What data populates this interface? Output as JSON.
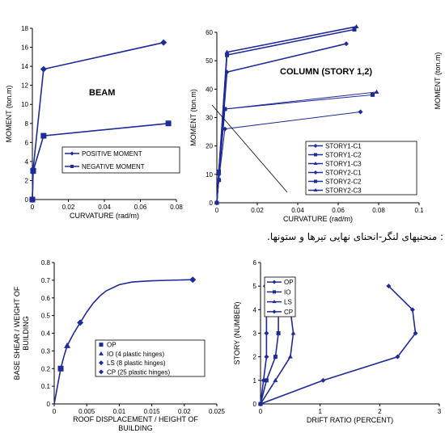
{
  "caption": ": منحنیهای لنگر-انحنای نهایی تیرها و ستونها.",
  "colors": {
    "series": "#1f2a9a",
    "axis": "#000000"
  },
  "chart_data": [
    {
      "id": "beam",
      "type": "line",
      "title": "BEAM",
      "xlabel": "CURVATURE (rad/m)",
      "ylabel": "MOMENT (ton.m)",
      "xlim": [
        0,
        0.09
      ],
      "ylim": [
        0,
        18
      ],
      "xticks": [
        "0",
        "0.02",
        "0.04",
        "0.06",
        "0.08"
      ],
      "yticks": [
        "0",
        "2",
        "4",
        "6",
        "8",
        "10",
        "12",
        "14",
        "16",
        "18"
      ],
      "legend_position": "bottom-right",
      "series": [
        {
          "name": "POSITIVE MOMENT",
          "marker": "diamond",
          "x": [
            0,
            0.0005,
            0.007,
            0.082
          ],
          "y": [
            0,
            3.2,
            13.7,
            16.5
          ]
        },
        {
          "name": "NEGATIVE MOMENT",
          "marker": "square",
          "x": [
            0,
            0.0005,
            0.007,
            0.085
          ],
          "y": [
            0,
            3.0,
            6.7,
            8.0
          ]
        }
      ]
    },
    {
      "id": "column",
      "type": "line",
      "title": "COLUMN (STORY 1,2)",
      "xlabel": "CURVATURE (rad/m)",
      "ylabel": "MOMENT (ton.m)",
      "right_ylabel": "MOMENT (ton.m)",
      "xlim": [
        0,
        0.1
      ],
      "ylim": [
        0,
        60
      ],
      "xticks": [
        "0",
        "0.02",
        "0.04",
        "0.06",
        "0.08",
        "0.1"
      ],
      "yticks": [
        "0",
        "10",
        "20",
        "30",
        "40",
        "50",
        "60"
      ],
      "legend_position": "bottom-right",
      "series": [
        {
          "name": "STORY1-C1",
          "marker": "diamond",
          "x": [
            0,
            0.001,
            0.005,
            0.064
          ],
          "y": [
            0,
            10,
            46,
            56
          ]
        },
        {
          "name": "STORY1-C2",
          "marker": "square",
          "x": [
            0,
            0.001,
            0.005,
            0.068
          ],
          "y": [
            0,
            11,
            52,
            61
          ]
        },
        {
          "name": "STORY1-C3",
          "marker": "triangle",
          "x": [
            0,
            0.001,
            0.005,
            0.069
          ],
          "y": [
            0,
            11,
            53,
            62
          ]
        },
        {
          "name": "STORY2-C1",
          "marker": "diamond",
          "x": [
            0,
            0.001,
            0.004,
            0.071
          ],
          "y": [
            0,
            8,
            26,
            32
          ]
        },
        {
          "name": "STORY2-C2",
          "marker": "square",
          "x": [
            0,
            0.001,
            0.004,
            0.077
          ],
          "y": [
            0,
            8,
            33,
            38
          ]
        },
        {
          "name": "STORY2-C3",
          "marker": "triangle",
          "x": [
            0,
            0.001,
            0.004,
            0.079
          ],
          "y": [
            0,
            8,
            33,
            39
          ]
        }
      ]
    },
    {
      "id": "pushover",
      "type": "line",
      "xlabel": "ROOF DISPLACEMENT / HEIGHT OF BUILDING",
      "ylabel": "BASE SHEAR / WEIGHT OF BUILDING",
      "xlim": [
        0,
        0.025
      ],
      "ylim": [
        0,
        0.8
      ],
      "xticks": [
        "0",
        "0.005",
        "0.01",
        "0.015",
        "0.02",
        "0.025"
      ],
      "yticks": [
        "0",
        "0.1",
        "0.2",
        "0.3",
        "0.4",
        "0.5",
        "0.6",
        "0.7",
        "0.8"
      ],
      "legend_position": "right",
      "curve": {
        "x": [
          0,
          0.0005,
          0.001,
          0.0015,
          0.002,
          0.003,
          0.004,
          0.005,
          0.006,
          0.007,
          0.008,
          0.01,
          0.012,
          0.015,
          0.018,
          0.0213
        ],
        "y": [
          0,
          0.1,
          0.2,
          0.27,
          0.33,
          0.4,
          0.46,
          0.52,
          0.57,
          0.61,
          0.64,
          0.675,
          0.69,
          0.697,
          0.7,
          0.703
        ]
      },
      "markers": [
        {
          "name": "OP",
          "marker": "square",
          "x": 0.001,
          "y": 0.2
        },
        {
          "name": "IO (4 plastic hinges)",
          "marker": "triangle",
          "x": 0.002,
          "y": 0.33
        },
        {
          "name": "LS (8 plastic hinges)",
          "marker": "diamond",
          "x": 0.004,
          "y": 0.46
        },
        {
          "name": "CP (25 plastic hinges)",
          "marker": "diamond",
          "x": 0.0213,
          "y": 0.703
        }
      ]
    },
    {
      "id": "drift",
      "type": "line",
      "xlabel": "DRIFT RATIO (PERCENT)",
      "ylabel": "STORY (NUMBER)",
      "xlim": [
        0,
        3
      ],
      "ylim": [
        0,
        6
      ],
      "xticks": [
        "0",
        "1",
        "2",
        "3"
      ],
      "yticks": [
        "0",
        "1",
        "2",
        "3",
        "4",
        "5",
        "6"
      ],
      "legend_position": "top-left",
      "series": [
        {
          "name": "OP",
          "marker": "diamond",
          "x": [
            0,
            0.05,
            0.1,
            0.1,
            0.1,
            0.08
          ],
          "y": [
            0,
            1,
            2,
            3,
            4,
            5
          ]
        },
        {
          "name": "IO",
          "marker": "square",
          "x": [
            0,
            0.1,
            0.25,
            0.3,
            0.3,
            0.2
          ],
          "y": [
            0,
            1,
            2,
            3,
            4,
            5
          ]
        },
        {
          "name": "LS",
          "marker": "triangle",
          "x": [
            0,
            0.25,
            0.5,
            0.55,
            0.5,
            0.3
          ],
          "y": [
            0,
            1,
            2,
            3,
            4,
            5
          ]
        },
        {
          "name": "CP",
          "marker": "diamond",
          "x": [
            0,
            1.05,
            2.3,
            2.6,
            2.55,
            2.15
          ],
          "y": [
            0,
            1,
            2,
            3,
            4,
            5
          ]
        }
      ]
    }
  ]
}
